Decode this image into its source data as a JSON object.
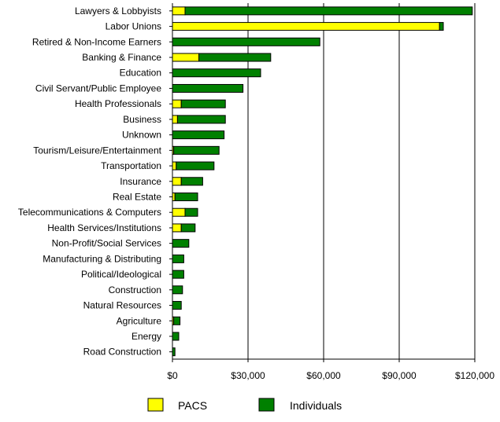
{
  "chart_data": {
    "type": "bar",
    "orientation": "horizontal",
    "stacked": true,
    "title": "",
    "xlabel": "",
    "ylabel": "",
    "xlim": [
      0,
      120000
    ],
    "x_ticks": [
      0,
      30000,
      60000,
      90000,
      120000
    ],
    "x_tick_labels": [
      "$0",
      "$30,000",
      "$60,000",
      "$90,000",
      "$120,000"
    ],
    "grid": "vertical",
    "legend_position": "bottom",
    "categories": [
      "Lawyers & Lobbyists",
      "Labor Unions",
      "Retired & Non-Income Earners",
      "Banking & Finance",
      "Education",
      "Civil Servant/Public Employee",
      "Health Professionals",
      "Business",
      "Unknown",
      "Tourism/Leisure/Entertainment",
      "Transportation",
      "Insurance",
      "Real Estate",
      "Telecommunications & Computers",
      "Health Services/Institutions",
      "Non-Profit/Social Services",
      "Manufacturing & Distributing",
      "Political/Ideological",
      "Construction",
      "Natural Resources",
      "Agriculture",
      "Energy",
      "Road Construction"
    ],
    "series": [
      {
        "name": "PACS",
        "color": "#ffff00",
        "values": [
          5000,
          106000,
          0,
          10500,
          0,
          0,
          3500,
          2000,
          0,
          500,
          1500,
          3500,
          1000,
          5000,
          3500,
          0,
          0,
          0,
          0,
          0,
          500,
          0,
          0
        ]
      },
      {
        "name": "Individuals",
        "color": "#008000",
        "values": [
          114000,
          1500,
          58500,
          28500,
          35000,
          28000,
          17500,
          19000,
          20500,
          18000,
          15000,
          8500,
          9000,
          5000,
          5500,
          6500,
          4500,
          4500,
          4000,
          3500,
          2500,
          2500,
          1000
        ]
      }
    ]
  }
}
